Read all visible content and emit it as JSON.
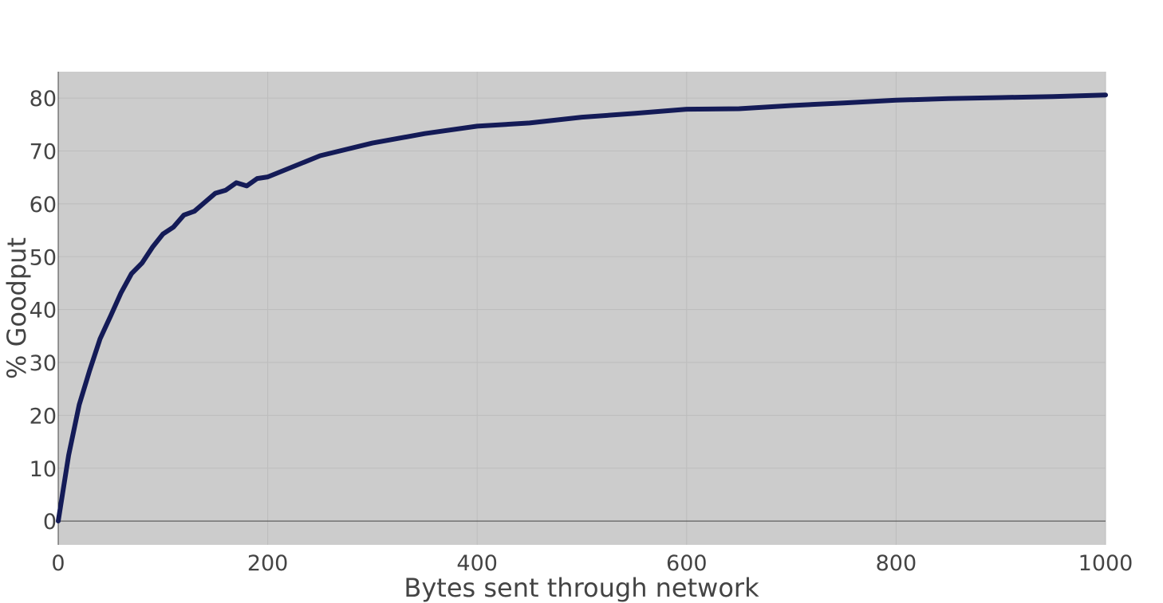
{
  "chart_data": {
    "type": "line",
    "title": "",
    "xlabel": "Bytes sent through network",
    "ylabel": "% Goodput",
    "xlim": [
      0,
      1000
    ],
    "ylim": [
      -4.5,
      85
    ],
    "x_ticks": [
      0,
      200,
      400,
      600,
      800,
      1000
    ],
    "y_ticks": [
      0,
      10,
      20,
      30,
      40,
      50,
      60,
      70,
      80
    ],
    "x_tick_labels": [
      "0",
      "200",
      "400",
      "600",
      "800",
      "1000"
    ],
    "y_tick_labels": [
      "0",
      "10",
      "20",
      "30",
      "40",
      "50",
      "60",
      "70",
      "80"
    ],
    "grid": true,
    "legend": "none",
    "colors": {
      "plot_background": "#cccccc",
      "grid": "#bdbdbd",
      "line": "#141b57",
      "zero_line": "#444444"
    },
    "series": [
      {
        "x": [
          0,
          10,
          20,
          30,
          40,
          50,
          60,
          70,
          80,
          90,
          100,
          110,
          120,
          130,
          140,
          150,
          160,
          170,
          180,
          190,
          200,
          250,
          300,
          350,
          400,
          450,
          500,
          550,
          600,
          650,
          700,
          750,
          800,
          850,
          900,
          950,
          1000
        ],
        "y": [
          0,
          12.5,
          22,
          28.5,
          34.5,
          38.8,
          43.2,
          46.8,
          48.8,
          51.8,
          54.3,
          55.6,
          57.9,
          58.6,
          60.3,
          62.0,
          62.6,
          64.0,
          63.4,
          64.8,
          65.1,
          69.1,
          71.5,
          73.3,
          74.7,
          75.3,
          76.4,
          77.1,
          77.9,
          78.0,
          78.6,
          79.1,
          79.6,
          79.9,
          80.1,
          80.3,
          80.6
        ]
      }
    ]
  }
}
